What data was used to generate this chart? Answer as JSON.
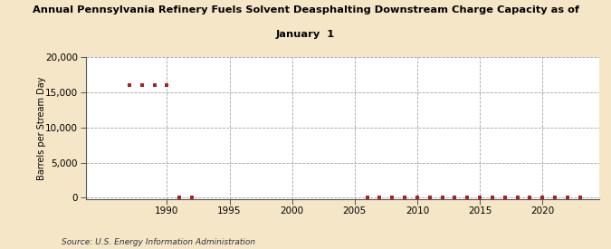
{
  "title_line1": "Annual Pennsylvania Refinery Fuels Solvent Deasphalting Downstream Charge Capacity as of",
  "title_line2": "January  1",
  "ylabel": "Barrels per Stream Day",
  "source": "Source: U.S. Energy Information Administration",
  "background_color": "#f5e6c8",
  "plot_bg_color": "#ffffff",
  "data_color": "#aa2222",
  "xlim": [
    1983.5,
    2024.5
  ],
  "ylim": [
    -200,
    20000
  ],
  "yticks": [
    0,
    5000,
    10000,
    15000,
    20000
  ],
  "xticks": [
    1990,
    1995,
    2000,
    2005,
    2010,
    2015,
    2020
  ],
  "series": [
    {
      "year": 1987,
      "value": 16000
    },
    {
      "year": 1988,
      "value": 16000
    },
    {
      "year": 1989,
      "value": 16000
    },
    {
      "year": 1990,
      "value": 16000
    },
    {
      "year": 1991,
      "value": 50
    },
    {
      "year": 1992,
      "value": 50
    },
    {
      "year": 2006,
      "value": 50
    },
    {
      "year": 2007,
      "value": 50
    },
    {
      "year": 2008,
      "value": 50
    },
    {
      "year": 2009,
      "value": 50
    },
    {
      "year": 2010,
      "value": 50
    },
    {
      "year": 2011,
      "value": 50
    },
    {
      "year": 2012,
      "value": 50
    },
    {
      "year": 2013,
      "value": 50
    },
    {
      "year": 2014,
      "value": 50
    },
    {
      "year": 2015,
      "value": 50
    },
    {
      "year": 2016,
      "value": 50
    },
    {
      "year": 2017,
      "value": 50
    },
    {
      "year": 2018,
      "value": 50
    },
    {
      "year": 2019,
      "value": 50
    },
    {
      "year": 2020,
      "value": 50
    },
    {
      "year": 2021,
      "value": 50
    },
    {
      "year": 2022,
      "value": 50
    },
    {
      "year": 2023,
      "value": 50
    }
  ]
}
